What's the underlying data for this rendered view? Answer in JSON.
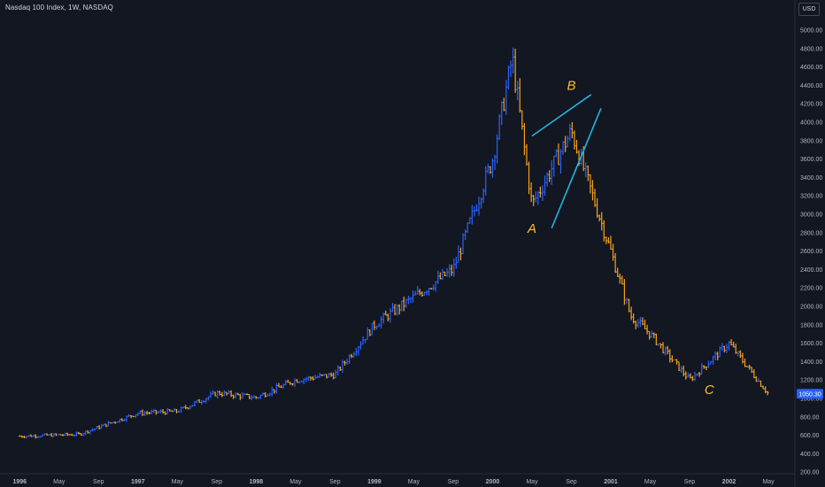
{
  "header": {
    "title": "Nasdaq 100 Index, 1W, NASDAQ",
    "currency": "USD"
  },
  "price_badge": "1050.30",
  "colors": {
    "background": "#131722",
    "up": "#2962ff",
    "down": "#f7a21b",
    "trendline": "#22b5e0",
    "wave_label": "#f9c02d",
    "badge": "#2962ff"
  },
  "chart_data": {
    "type": "ohlc",
    "title": "Nasdaq 100 Index, 1W, NASDAQ",
    "xlabel": "",
    "ylabel": "",
    "ylim": [
      200,
      5200
    ],
    "grid": false,
    "x_ticks": [
      "1996",
      "May",
      "Sep",
      "1997",
      "May",
      "Sep",
      "1998",
      "May",
      "Sep",
      "1999",
      "May",
      "Sep",
      "2000",
      "May",
      "Sep",
      "2001",
      "May",
      "Sep",
      "2002",
      "May"
    ],
    "y_ticks": [
      "5000.00",
      "4800.00",
      "4600.00",
      "4400.00",
      "4200.00",
      "4000.00",
      "3800.00",
      "3600.00",
      "3400.00",
      "3200.00",
      "3000.00",
      "2800.00",
      "2600.00",
      "2400.00",
      "2200.00",
      "2000.00",
      "1800.00",
      "1600.00",
      "1400.00",
      "1200.00",
      "1000.00",
      "800.00",
      "600.00",
      "400.00",
      "200.00"
    ],
    "key_closes": [
      {
        "date": "1996-01",
        "value": 590
      },
      {
        "date": "1996-07",
        "value": 610
      },
      {
        "date": "1997-01",
        "value": 840
      },
      {
        "date": "1997-05",
        "value": 860
      },
      {
        "date": "1997-09",
        "value": 1060
      },
      {
        "date": "1998-01",
        "value": 1010
      },
      {
        "date": "1998-05",
        "value": 1200
      },
      {
        "date": "1998-09",
        "value": 1260
      },
      {
        "date": "1999-01",
        "value": 1800
      },
      {
        "date": "1999-05",
        "value": 2100
      },
      {
        "date": "1999-09",
        "value": 2400
      },
      {
        "date": "2000-01",
        "value": 3600
      },
      {
        "date": "2000-03",
        "value": 4700
      },
      {
        "date": "2000-05",
        "value": 3100
      },
      {
        "date": "2000-09",
        "value": 3900
      },
      {
        "date": "2001-01",
        "value": 2600
      },
      {
        "date": "2001-03",
        "value": 1900
      },
      {
        "date": "2001-05",
        "value": 1700
      },
      {
        "date": "2001-09",
        "value": 1200
      },
      {
        "date": "2002-01",
        "value": 1600
      },
      {
        "date": "2002-05",
        "value": 1050
      }
    ],
    "annotations": [
      {
        "label": "A",
        "date": "2000-05",
        "value": 2800
      },
      {
        "label": "B",
        "date": "2000-09",
        "value": 4350
      },
      {
        "label": "C",
        "date": "2001-11",
        "value": 1050
      }
    ],
    "trendlines": [
      {
        "from": {
          "date": "2000-05",
          "value": 3850
        },
        "to": {
          "date": "2000-11",
          "value": 4300
        }
      },
      {
        "from": {
          "date": "2000-07",
          "value": 2850
        },
        "to": {
          "date": "2000-12",
          "value": 4150
        }
      }
    ]
  }
}
